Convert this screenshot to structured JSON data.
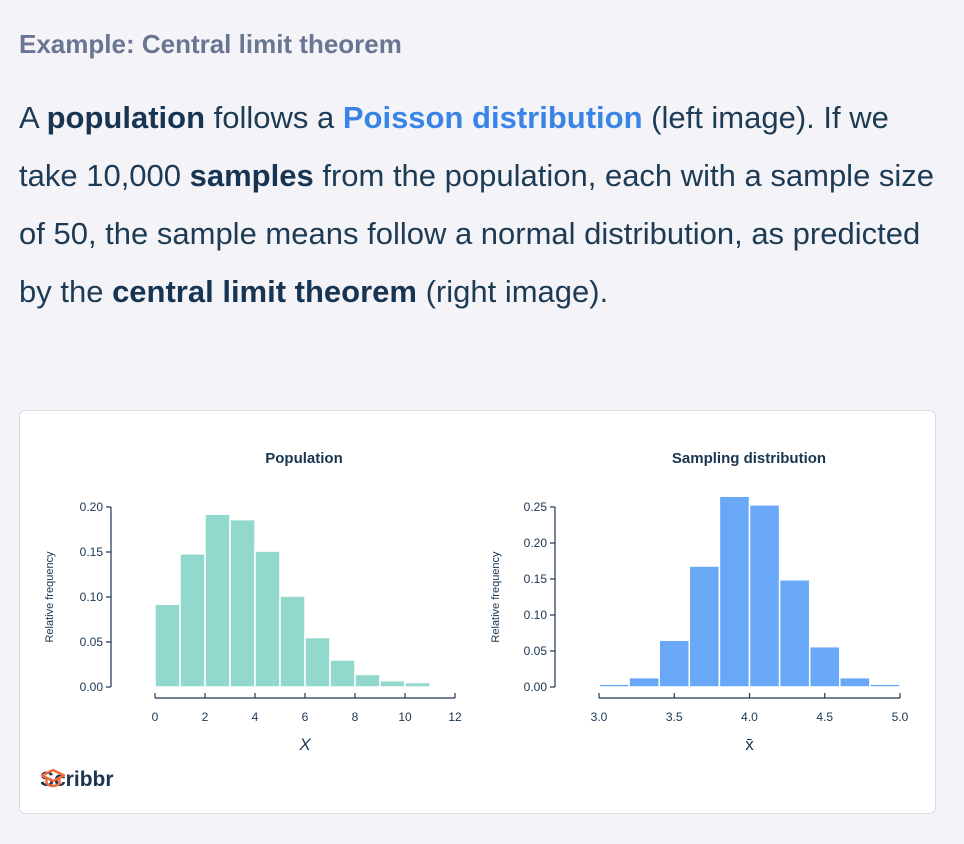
{
  "heading": "Example: Central limit theorem",
  "paragraph": {
    "p1": "A ",
    "b1": "population",
    "p2": " follows a ",
    "link": "Poisson distribution",
    "p3": " (left image). If we take 10,000 ",
    "b2": "samples",
    "p4": " from the population, each with a sample size of 50, the sample means follow a normal distribution, as predicted by the ",
    "b3": "central limit theorem",
    "p5": " (right image)."
  },
  "logo": {
    "text": "Scribbr",
    "icon": "graduation-cap-icon"
  },
  "colors": {
    "population": "#93d8cc",
    "sampling": "#68a8f7",
    "axis": "#1a3550"
  },
  "chart_data": [
    {
      "type": "bar",
      "title": "Population",
      "xlabel": "X",
      "ylabel": "Relative frequency",
      "xlim": [
        0,
        12
      ],
      "ylim": [
        0,
        0.2
      ],
      "xticks": [
        0,
        2,
        4,
        6,
        8,
        10,
        12
      ],
      "xtick_labels": [
        "0",
        "2",
        "4",
        "6",
        "8",
        "10",
        "12"
      ],
      "yticks": [
        0,
        0.05,
        0.1,
        0.15,
        0.2
      ],
      "ytick_labels": [
        "0.00",
        "0.05",
        "0.10",
        "0.15",
        "0.20"
      ],
      "bin_edges": [
        0,
        1,
        2,
        3,
        4,
        5,
        6,
        7,
        8,
        9,
        10,
        11
      ],
      "values": [
        0.092,
        0.148,
        0.192,
        0.186,
        0.151,
        0.101,
        0.055,
        0.03,
        0.014,
        0.007,
        0.005
      ],
      "color": "#93d8cc"
    },
    {
      "type": "bar",
      "title": "Sampling distribution",
      "xlabel": "x̄",
      "ylabel": "Relative frequency",
      "xlim": [
        3.0,
        5.0
      ],
      "ylim": [
        0,
        0.25
      ],
      "xticks": [
        3.0,
        3.5,
        4.0,
        4.5,
        5.0
      ],
      "xtick_labels": [
        "3.0",
        "3.5",
        "4.0",
        "4.5",
        "5.0"
      ],
      "yticks": [
        0,
        0.05,
        0.1,
        0.15,
        0.2,
        0.25
      ],
      "ytick_labels": [
        "0.00",
        "0.05",
        "0.10",
        "0.15",
        "0.20",
        "0.25"
      ],
      "bin_edges": [
        3.0,
        3.2,
        3.4,
        3.6,
        3.8,
        4.0,
        4.2,
        4.4,
        4.6,
        4.8,
        5.0
      ],
      "values": [
        0.004,
        0.013,
        0.065,
        0.168,
        0.265,
        0.253,
        0.149,
        0.056,
        0.013,
        0.004
      ],
      "color": "#68a8f7"
    }
  ]
}
